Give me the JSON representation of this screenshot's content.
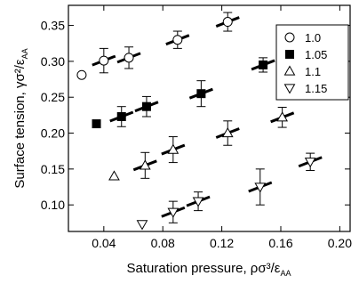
{
  "chart_data": {
    "type": "scatter",
    "title": "",
    "xlabel": "Saturation pressure, ρσ³/ε",
    "xlabel_sub": "AA",
    "ylabel": "Surface tension, γσ²/ε",
    "ylabel_sub": "AA",
    "xlim": [
      0.016,
      0.207
    ],
    "ylim": [
      0.063,
      0.378
    ],
    "xticks": [
      0.04,
      0.08,
      0.12,
      0.16,
      0.2
    ],
    "xtick_labels": [
      "0.04",
      "0.08",
      "0.12",
      "0.16",
      "0.20"
    ],
    "yticks": [
      0.1,
      0.15,
      0.2,
      0.25,
      0.3,
      0.35
    ],
    "ytick_labels": [
      "0.10",
      "0.15",
      "0.20",
      "0.25",
      "0.30",
      "0.35"
    ],
    "grid": false,
    "legend_position": "top-right",
    "series": [
      {
        "name": "1.0",
        "marker": "circle-open",
        "points": [
          {
            "x": 0.025,
            "y": 0.281,
            "err": 0,
            "slope": false
          },
          {
            "x": 0.04,
            "y": 0.301,
            "err": 0.017,
            "slope": true
          },
          {
            "x": 0.057,
            "y": 0.305,
            "err": 0.015,
            "slope": true
          },
          {
            "x": 0.09,
            "y": 0.33,
            "err": 0.012,
            "slope": true
          },
          {
            "x": 0.124,
            "y": 0.355,
            "err": 0.013,
            "slope": true
          }
        ]
      },
      {
        "name": "1.05",
        "marker": "square-filled",
        "points": [
          {
            "x": 0.035,
            "y": 0.213,
            "err": 0,
            "slope": false
          },
          {
            "x": 0.052,
            "y": 0.223,
            "err": 0.014,
            "slope": true
          },
          {
            "x": 0.069,
            "y": 0.237,
            "err": 0.014,
            "slope": true
          },
          {
            "x": 0.106,
            "y": 0.255,
            "err": 0.018,
            "slope": true
          },
          {
            "x": 0.148,
            "y": 0.295,
            "err": 0.01,
            "slope": true
          }
        ]
      },
      {
        "name": "1.1",
        "marker": "triangle-up-open",
        "points": [
          {
            "x": 0.047,
            "y": 0.14,
            "err": 0,
            "slope": false
          },
          {
            "x": 0.068,
            "y": 0.155,
            "err": 0.018,
            "slope": true
          },
          {
            "x": 0.087,
            "y": 0.177,
            "err": 0.018,
            "slope": true
          },
          {
            "x": 0.124,
            "y": 0.2,
            "err": 0.017,
            "slope": true
          },
          {
            "x": 0.161,
            "y": 0.222,
            "err": 0.014,
            "slope": true
          }
        ]
      },
      {
        "name": "1.15",
        "marker": "triangle-down-open",
        "points": [
          {
            "x": 0.066,
            "y": 0.073,
            "err": 0,
            "slope": false
          },
          {
            "x": 0.087,
            "y": 0.09,
            "err": 0.015,
            "slope": true
          },
          {
            "x": 0.104,
            "y": 0.105,
            "err": 0.013,
            "slope": true
          },
          {
            "x": 0.146,
            "y": 0.125,
            "err": 0.025,
            "slope": true
          },
          {
            "x": 0.18,
            "y": 0.16,
            "err": 0.012,
            "slope": true
          }
        ]
      }
    ]
  }
}
